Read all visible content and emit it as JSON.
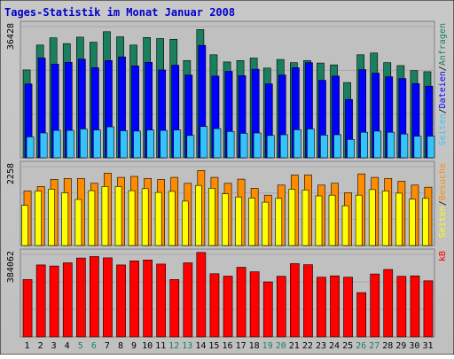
{
  "chart_data": {
    "type": "bar",
    "title": "Tages-Statistik im Monat Januar 2008",
    "categories": [
      "1",
      "2",
      "3",
      "4",
      "5",
      "6",
      "7",
      "8",
      "9",
      "10",
      "11",
      "12",
      "13",
      "14",
      "15",
      "16",
      "17",
      "18",
      "19",
      "20",
      "21",
      "22",
      "23",
      "24",
      "25",
      "26",
      "27",
      "28",
      "29",
      "30",
      "31"
    ],
    "weekend_days": [
      "5",
      "6",
      "12",
      "13",
      "19",
      "20",
      "26",
      "27"
    ],
    "colors": {
      "anfragen": "#1a7f5e",
      "dateien": "#0000ff",
      "seiten_top": "#33c3ff",
      "besuche": "#ff8c00",
      "seiten_bottom": "#ffff00",
      "kb": "#ff0000",
      "weekday_label": "#000000",
      "weekend_label": "#1a7f5e",
      "panel_bg": "#c0c0c0",
      "title_color": "#0000cc",
      "frame_bg": "#c0c0c0"
    },
    "panels": [
      {
        "name": "top",
        "max_label": "36428",
        "ymax": 36428,
        "legend": [
          {
            "text": "Anfragen",
            "color": "#1a7f5e"
          },
          {
            "text": "/",
            "color": "#000000"
          },
          {
            "text": "Dateien",
            "color": "#0000ff"
          },
          {
            "text": "/",
            "color": "#000000"
          },
          {
            "text": "Seiten",
            "color": "#33c3ff"
          }
        ],
        "series": [
          {
            "name": "Anfragen",
            "values": [
              24400,
              31300,
              33300,
              31700,
              33500,
              32100,
              35000,
              33600,
              31300,
              33400,
              33100,
              32900,
              27000,
              35600,
              28600,
              26600,
              27000,
              27700,
              24900,
              27300,
              26400,
              27000,
              26300,
              25800,
              20900,
              28600,
              29100,
              26400,
              25600,
              24200,
              23900
            ]
          },
          {
            "name": "Dateien",
            "values": [
              20500,
              27700,
              26000,
              26500,
              27400,
              25000,
              27000,
              28000,
              25500,
              26500,
              24400,
              25700,
              23000,
              31200,
              22700,
              24000,
              22800,
              24600,
              20500,
              23000,
              25000,
              26400,
              21500,
              22700,
              16200,
              24500,
              23500,
              22500,
              22000,
              20600,
              19900
            ]
          },
          {
            "name": "Seiten",
            "values": [
              5800,
              6900,
              7600,
              7600,
              8000,
              7700,
              8600,
              7500,
              7400,
              7700,
              7600,
              7700,
              6200,
              8700,
              8100,
              7300,
              6800,
              6900,
              6200,
              6400,
              7800,
              8000,
              6300,
              6400,
              5100,
              7100,
              7400,
              7100,
              6600,
              6000,
              6000
            ]
          }
        ]
      },
      {
        "name": "middle",
        "max_label": "2258",
        "ymax": 2258,
        "legend": [
          {
            "text": "Besuche",
            "color": "#ff8c00"
          },
          {
            "text": "/",
            "color": "#000000"
          },
          {
            "text": "Seiten",
            "color": "#ffff00"
          }
        ],
        "series": [
          {
            "name": "Besuche",
            "values": [
              1560,
              1690,
              1890,
              1920,
              1920,
              1780,
              2070,
              1950,
              1980,
              1920,
              1890,
              1950,
              1780,
              2150,
              1950,
              1780,
              1900,
              1640,
              1440,
              1730,
              2020,
              2020,
              1730,
              1780,
              1510,
              2050,
              1950,
              1920,
              1840,
              1730,
              1670
            ]
          },
          {
            "name": "Seiten",
            "values": [
              1150,
              1560,
              1610,
              1510,
              1320,
              1570,
              1690,
              1690,
              1570,
              1630,
              1520,
              1550,
              1270,
              1720,
              1640,
              1480,
              1390,
              1360,
              1240,
              1350,
              1610,
              1590,
              1420,
              1440,
              1140,
              1440,
              1600,
              1560,
              1500,
              1330,
              1350
            ]
          }
        ]
      },
      {
        "name": "bottom",
        "max_label": "384062",
        "ymax": 384062,
        "legend": [
          {
            "text": "kB",
            "color": "#ff0000"
          }
        ],
        "series": [
          {
            "name": "kB",
            "values": [
              267000,
              335000,
              330000,
              345000,
              367000,
              374000,
              368000,
              335000,
              354000,
              358000,
              339000,
              267000,
              345000,
              393000,
              294000,
              283000,
              324000,
              303000,
              256000,
              282000,
              341000,
              336000,
              278000,
              284000,
              278000,
              206000,
              293000,
              314000,
              282000,
              284000,
              261000
            ]
          }
        ]
      }
    ]
  }
}
